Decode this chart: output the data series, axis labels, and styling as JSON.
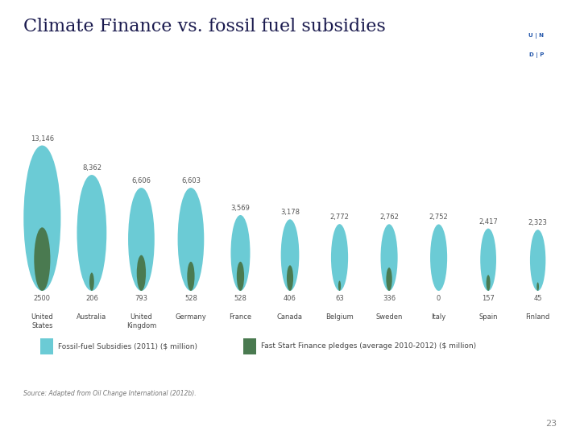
{
  "title": "Climate Finance vs. fossil fuel subsidies",
  "countries": [
    "United\nStates",
    "Australia",
    "United\nKingdom",
    "Germany",
    "France",
    "Canada",
    "Belgium",
    "Sweden",
    "Italy",
    "Spain",
    "Finland"
  ],
  "fossil_fuel": [
    13146,
    8362,
    6606,
    6603,
    3569,
    3178,
    2772,
    2762,
    2752,
    2417,
    2323
  ],
  "fast_start": [
    2500,
    206,
    793,
    528,
    528,
    406,
    63,
    336,
    0,
    157,
    45
  ],
  "fossil_color": "#6BCBD5",
  "fast_color": "#4A7A50",
  "background_color": "#FFFFFF",
  "title_fontsize": 16,
  "title_color": "#1a1a4e",
  "label_fontsize": 6,
  "country_fontsize": 6,
  "legend_label_fossil": "Fossil-fuel Subsidies (2011) ($ million)",
  "legend_label_fast": "Fast Start Finance pledges (average 2010-2012) ($ million)",
  "source_text": "Source: Adapted from Oil Change International (2012b).",
  "page_number": "23"
}
